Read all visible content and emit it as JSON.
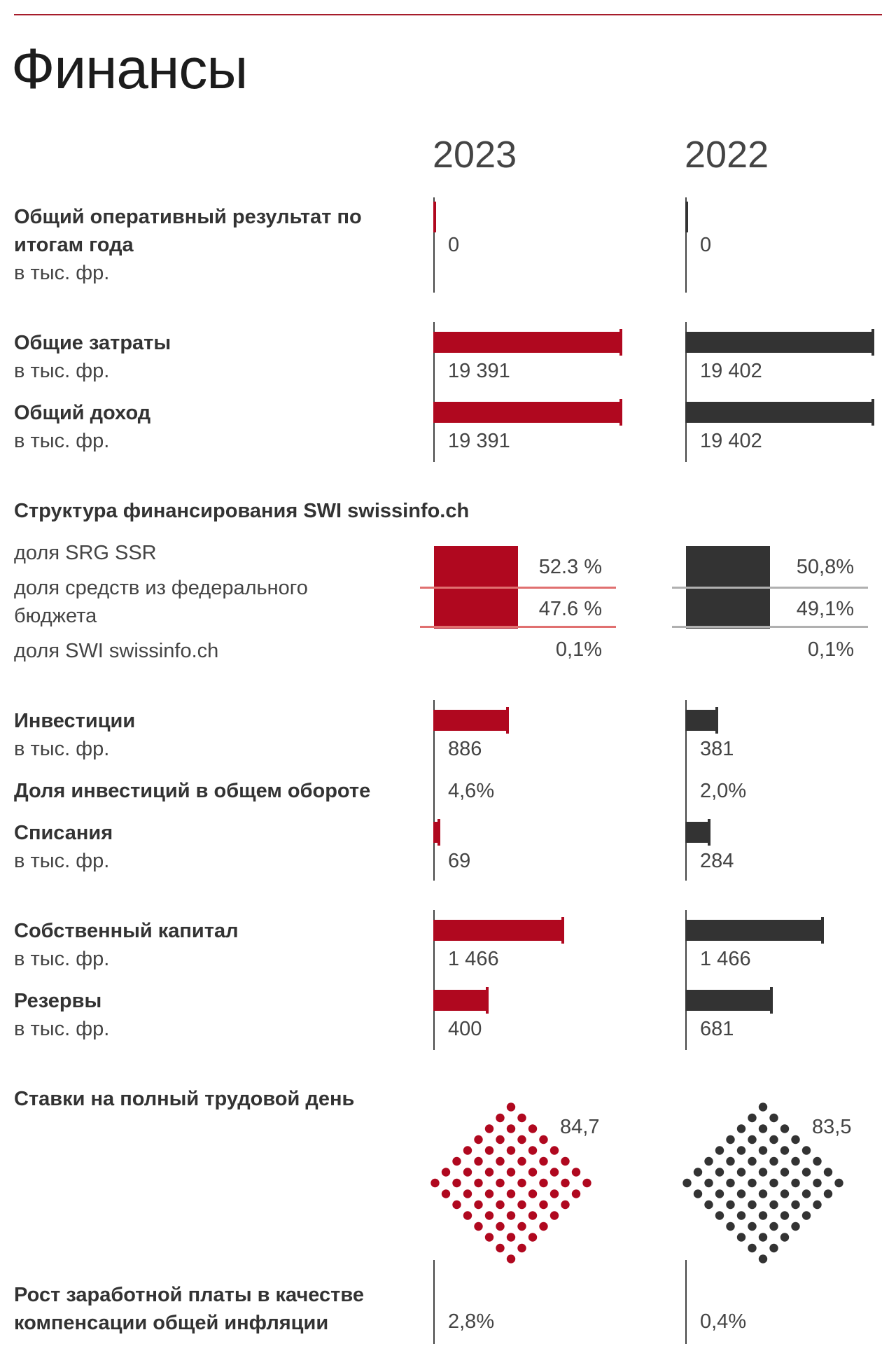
{
  "title": "Финансы",
  "years": [
    "2023",
    "2022"
  ],
  "unit": "в тыс. фр.",
  "colors": {
    "y2023": "#b0081f",
    "y2022": "#333333",
    "rule2023": "#e07070",
    "rule2022": "#b0b0b0"
  },
  "rows": {
    "operating_result": {
      "label": "Общий оперативный результат по итогам года",
      "v2023": "0",
      "v2022": "0"
    },
    "costs": {
      "label": "Общие затраты",
      "v2023": "19 391",
      "v2022": "19 402"
    },
    "income": {
      "label": "Общий доход",
      "v2023": "19 391",
      "v2022": "19 402"
    },
    "investments": {
      "label": "Инвестиции",
      "v2023": "886",
      "v2022": "381"
    },
    "invest_share": {
      "label": "Доля инвестиций в общем обороте",
      "v2023": "4,6%",
      "v2022": "2,0%"
    },
    "writeoffs": {
      "label": "Списания",
      "v2023": "69",
      "v2022": "284"
    },
    "equity": {
      "label": "Собственный капитал",
      "v2023": "1 466",
      "v2022": "1 466"
    },
    "reserves": {
      "label": "Резервы",
      "v2023": "400",
      "v2022": "681"
    },
    "fte": {
      "label": "Ставки на полный трудовой день",
      "v2023": "84,7",
      "v2022": "83,5"
    },
    "wage": {
      "label": "Рост заработной платы в качестве компенсации общей инфляции",
      "v2023": "2,8%",
      "v2022": "0,4%"
    }
  },
  "funding": {
    "label": "Структура финансирования SWI swissinfo.ch",
    "items": [
      {
        "label": "доля SRG SSR",
        "v2023": "52.3 %",
        "v2022": "50,8%"
      },
      {
        "label": "доля средств из федерального бюджета",
        "v2023": "47.6 %",
        "v2022": "49,1%"
      },
      {
        "label": "доля SWI swissinfo.ch",
        "v2023": "0,1%",
        "v2022": "0,1%"
      }
    ]
  },
  "chart_data": {
    "type": "bar",
    "categories": [
      "Общий оперативный результат по итогам года",
      "Общие затраты",
      "Общий доход",
      "Инвестиции",
      "Списания",
      "Собственный капитал",
      "Резервы"
    ],
    "series": [
      {
        "name": "2023",
        "values": [
          0,
          19391,
          19391,
          886,
          69,
          1466,
          400
        ]
      },
      {
        "name": "2022",
        "values": [
          0,
          19402,
          19402,
          381,
          284,
          1466,
          681
        ]
      }
    ],
    "funding_share": {
      "categories": [
        "доля SRG SSR",
        "доля средств из федерального бюджета",
        "доля SWI swissinfo.ch"
      ],
      "2023": [
        52.3,
        47.6,
        0.1
      ],
      "2022": [
        50.8,
        49.1,
        0.1
      ]
    },
    "investment_share_pct": {
      "2023": 4.6,
      "2022": 2.0
    },
    "fte": {
      "2023": 84.7,
      "2022": 83.5
    },
    "wage_growth_pct": {
      "2023": 2.8,
      "2022": 0.4
    },
    "title": "Финансы"
  }
}
